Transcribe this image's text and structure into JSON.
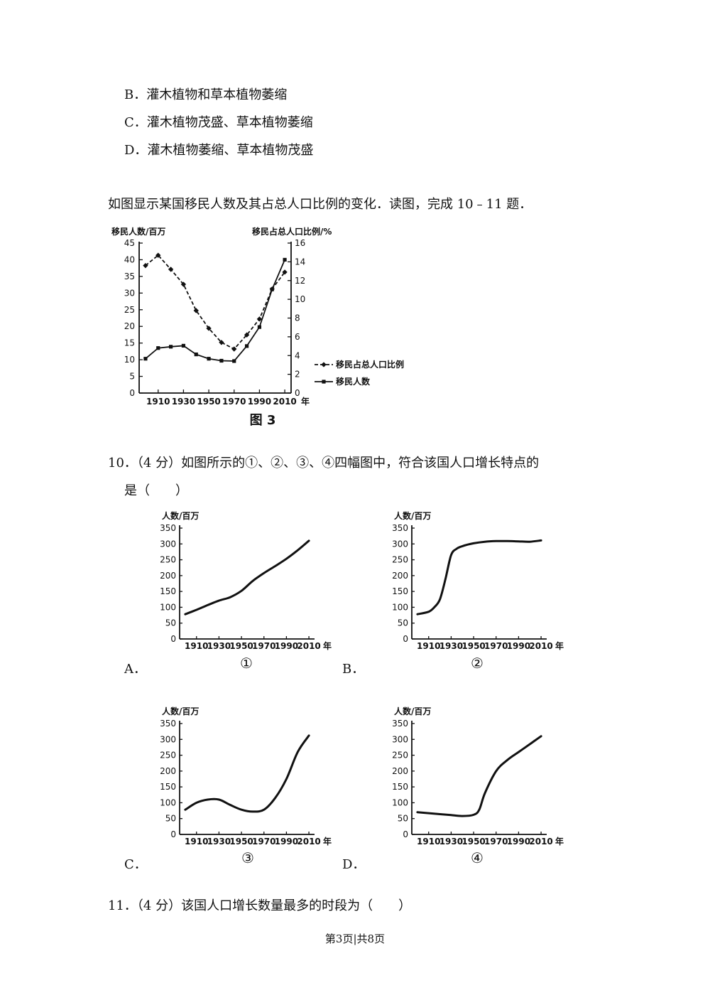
{
  "options_prev": [
    {
      "letter": "B．",
      "text": "灌木植物和草本植物萎缩"
    },
    {
      "letter": "C．",
      "text": "灌木植物茂盛、草本植物萎缩"
    },
    {
      "letter": "D．",
      "text": "灌木植物萎缩、草本植物茂盛"
    }
  ],
  "intro": "如图显示某国移民人数及其占总人口比例的变化．读图，完成 10﹣11 题．",
  "q10": {
    "line1": "10．（4 分）如图所示的①、②、③、④四幅图中，符合该国人口增长特点的",
    "line2": "是（　　）"
  },
  "q11": "11．（4 分）该国人口增长数量最多的时段为（　　）",
  "footer": "第3页|共8页",
  "chart_data": [
    {
      "id": "fig3",
      "type": "line",
      "title": "图 3",
      "ylabel_left": "移民人数/百万",
      "ylabel_right": "移民占总人口比例/%",
      "xlabel": "年",
      "x_ticks": [
        "1910",
        "1930",
        "1950",
        "1970",
        "1990",
        "2010"
      ],
      "y_left_ticks": [
        "0",
        "5",
        "10",
        "15",
        "20",
        "25",
        "30",
        "35",
        "40",
        "45"
      ],
      "y_right_ticks": [
        "0",
        "2",
        "4",
        "6",
        "8",
        "10",
        "12",
        "14",
        "16"
      ],
      "ylim_left": [
        0,
        45
      ],
      "ylim_right": [
        0,
        16
      ],
      "legend_position": "right",
      "series": [
        {
          "name": "移民占总人口比例",
          "axis": "right",
          "style": "dashed",
          "x": [
            1900,
            1910,
            1920,
            1930,
            1940,
            1950,
            1960,
            1970,
            1980,
            1990,
            2000,
            2010
          ],
          "values": [
            13.6,
            14.7,
            13.2,
            11.6,
            8.8,
            6.9,
            5.4,
            4.7,
            6.2,
            7.9,
            11.1,
            12.9
          ]
        },
        {
          "name": "移民人数",
          "axis": "left",
          "style": "solid",
          "x": [
            1900,
            1910,
            1920,
            1930,
            1940,
            1950,
            1960,
            1970,
            1980,
            1990,
            2000,
            2010
          ],
          "values": [
            10.3,
            13.5,
            13.9,
            14.2,
            11.6,
            10.3,
            9.7,
            9.6,
            14.1,
            19.8,
            31.1,
            40.0
          ]
        }
      ]
    },
    {
      "id": "graph1",
      "type": "line",
      "label": "①",
      "option": "A．",
      "ylabel": "人数/百万",
      "xlabel": "年",
      "x_ticks": [
        "1910",
        "1930",
        "1950",
        "1970",
        "1990",
        "2010"
      ],
      "y_ticks": [
        "0",
        "50",
        "100",
        "150",
        "200",
        "250",
        "300",
        "350"
      ],
      "ylim": [
        0,
        350
      ],
      "x": [
        1900,
        1910,
        1920,
        1930,
        1940,
        1950,
        1960,
        1970,
        1980,
        1990,
        2000,
        2010
      ],
      "values": [
        78,
        92,
        107,
        121,
        132,
        152,
        183,
        208,
        230,
        253,
        280,
        310
      ]
    },
    {
      "id": "graph2",
      "type": "line",
      "label": "②",
      "option": "B．",
      "ylabel": "人数/百万",
      "xlabel": "年",
      "x_ticks": [
        "1910",
        "1930",
        "1950",
        "1970",
        "1990",
        "2010"
      ],
      "y_ticks": [
        "0",
        "50",
        "100",
        "150",
        "200",
        "250",
        "300",
        "350"
      ],
      "ylim": [
        0,
        350
      ],
      "x": [
        1900,
        1910,
        1915,
        1920,
        1925,
        1930,
        1935,
        1940,
        1950,
        1960,
        1970,
        1980,
        1990,
        2000,
        2010
      ],
      "values": [
        78,
        86,
        100,
        125,
        190,
        265,
        285,
        293,
        302,
        307,
        309,
        309,
        308,
        307,
        311
      ]
    },
    {
      "id": "graph3",
      "type": "line",
      "label": "③",
      "option": "C．",
      "ylabel": "人数/百万",
      "xlabel": "年",
      "x_ticks": [
        "1910",
        "1930",
        "1950",
        "1970",
        "1990",
        "2010"
      ],
      "y_ticks": [
        "0",
        "50",
        "100",
        "150",
        "200",
        "250",
        "300",
        "350"
      ],
      "ylim": [
        0,
        350
      ],
      "x": [
        1900,
        1910,
        1920,
        1930,
        1940,
        1950,
        1960,
        1970,
        1980,
        1990,
        2000,
        2010
      ],
      "values": [
        78,
        100,
        110,
        110,
        93,
        78,
        72,
        78,
        115,
        175,
        260,
        312
      ]
    },
    {
      "id": "graph4",
      "type": "line",
      "label": "④",
      "option": "D．",
      "ylabel": "人数/百万",
      "xlabel": "年",
      "x_ticks": [
        "1910",
        "1930",
        "1950",
        "1970",
        "1990",
        "2010"
      ],
      "y_ticks": [
        "0",
        "50",
        "100",
        "150",
        "200",
        "250",
        "300",
        "350"
      ],
      "ylim": [
        0,
        350
      ],
      "x": [
        1900,
        1910,
        1920,
        1930,
        1940,
        1950,
        1955,
        1960,
        1970,
        1980,
        1990,
        2000,
        2010
      ],
      "values": [
        70,
        67,
        64,
        61,
        58,
        62,
        78,
        130,
        200,
        235,
        260,
        285,
        310
      ]
    }
  ]
}
